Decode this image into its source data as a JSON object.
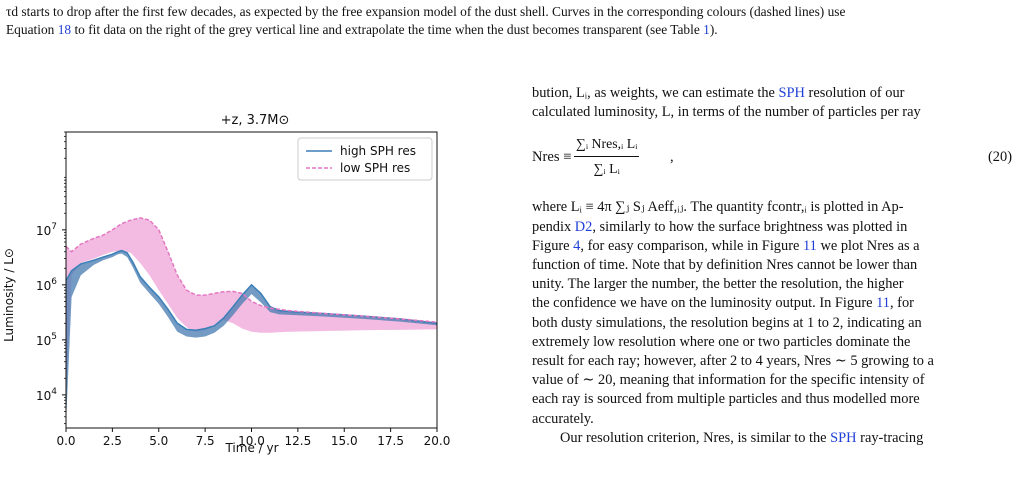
{
  "caption": {
    "line1": "τd starts to drop after the first few decades, as expected by the free expansion model of the dust shell. Curves in the corresponding colours (dashed lines) use",
    "line2_pre": "Equation ",
    "line2_eqref": "18",
    "line2_mid": " to fit data on the right of the grey vertical line and extrapolate the time when the dust becomes transparent (see Table ",
    "line2_tabref": "1",
    "line2_post": ")."
  },
  "body": {
    "p1_l1_pre": "bution, Lᵢ, as weights, we can estimate the ",
    "p1_l1_link": "SPH",
    "p1_l1_post": " resolution of our",
    "p1_l2": "calculated luminosity, L, in terms of the number of particles per ray",
    "eq_lhs": "Nres ≡",
    "eq_num": "∑ᵢ Nres,ᵢ Lᵢ",
    "eq_den": "∑ᵢ Lᵢ",
    "eq_tail": ",",
    "eq_number": "(20)",
    "p2_a": "where Lᵢ ≡ 4π ∑ⱼ Sⱼ Aeff,ᵢⱼ. The quantity fcontr,ᵢ is plotted in Ap-",
    "p2_b_pre": "pendix ",
    "p2_b_link": "D2",
    "p2_b_post": ", similarly to how the surface brightness was plotted in",
    "p2_c_pre": "Figure ",
    "p2_c_link1": "4",
    "p2_c_mid": ", for easy comparison, while in Figure ",
    "p2_c_link2": "11",
    "p2_c_post": " we plot Nres as a",
    "p2_d": "function of time. Note that by definition Nres cannot be lower than",
    "p2_e": "unity. The larger the number, the better the resolution, the higher",
    "p2_f_pre": "the confidence we have on the luminosity output. In Figure ",
    "p2_f_link": "11",
    "p2_f_post": ", for",
    "p2_g": "both dusty simulations, the resolution begins at 1 to 2, indicating an",
    "p2_h": "extremely low resolution where one or two particles dominate the",
    "p2_i": "result for each ray; however, after 2 to 4 years, Nres ∼ 5 growing to a",
    "p2_j": "value of ∼ 20, meaning that information for the specific intensity of",
    "p2_k": "each ray is sourced from multiple particles and thus modelled more",
    "p2_l": "accurately.",
    "p3_pre": "Our resolution criterion, Nres, is similar to the ",
    "p3_link": "SPH",
    "p3_post": " ray-tracing"
  },
  "chart_data": {
    "type": "line",
    "title": "+z, 3.7M⊙",
    "xlabel": "Time / yr",
    "ylabel": "Luminosity / L⊙",
    "yscale": "log",
    "xlim": [
      0,
      20
    ],
    "ylim": [
      2500,
      600000000
    ],
    "xticks": [
      "0.0",
      "2.5",
      "5.0",
      "7.5",
      "10.0",
      "12.5",
      "15.0",
      "17.5",
      "20.0"
    ],
    "yticks": [
      {
        "label": "10",
        "exp": "4",
        "value": 10000
      },
      {
        "label": "10",
        "exp": "5",
        "value": 100000
      },
      {
        "label": "10",
        "exp": "6",
        "value": 1000000
      },
      {
        "label": "10",
        "exp": "7",
        "value": 10000000
      }
    ],
    "legend_position": "top-right",
    "series": [
      {
        "name": "high SPH res",
        "color": "#3b7fb8",
        "style": "solid",
        "band_color": "#4d7fb3",
        "x": [
          0.0,
          0.3,
          0.8,
          1.5,
          2.0,
          2.5,
          2.8,
          3.0,
          3.3,
          3.6,
          4.0,
          4.5,
          5.0,
          5.5,
          6.0,
          6.5,
          7.0,
          7.5,
          8.0,
          8.5,
          9.0,
          9.5,
          10.0,
          10.5,
          11.0,
          11.5,
          12.5,
          14.0,
          16.0,
          18.0,
          20.0
        ],
        "y": [
          1200000,
          1800000,
          2400000,
          2800000,
          3200000,
          3600000,
          4000000,
          4200000,
          3800000,
          2600000,
          1400000,
          900000,
          600000,
          360000,
          200000,
          155000,
          150000,
          160000,
          180000,
          250000,
          400000,
          650000,
          1000000,
          700000,
          400000,
          340000,
          320000,
          300000,
          270000,
          240000,
          200000
        ],
        "lower": [
          3000,
          600000,
          1500000,
          2300000,
          2800000,
          3200000,
          3600000,
          3700000,
          3200000,
          2100000,
          1100000,
          700000,
          450000,
          260000,
          140000,
          115000,
          110000,
          115000,
          135000,
          180000,
          280000,
          450000,
          680000,
          480000,
          320000,
          290000,
          280000,
          265000,
          240000,
          215000,
          185000
        ]
      },
      {
        "name": "low SPH res",
        "color": "#e377c2",
        "style": "dashed",
        "band_color": "#f0a8d8",
        "x": [
          0.0,
          0.3,
          0.8,
          1.5,
          2.0,
          2.5,
          3.0,
          3.5,
          4.0,
          4.5,
          5.0,
          5.5,
          6.0,
          6.5,
          7.0,
          7.5,
          8.0,
          8.5,
          9.0,
          9.5,
          10.0,
          10.5,
          11.0,
          12.0,
          14.0,
          16.0,
          18.0,
          20.0
        ],
        "y": [
          5000000,
          4000000,
          5500000,
          7000000,
          8000000,
          10000000,
          13000000,
          15000000,
          16500000,
          15000000,
          10000000,
          4000000,
          1500000,
          800000,
          650000,
          650000,
          700000,
          750000,
          760000,
          700000,
          500000,
          420000,
          380000,
          340000,
          300000,
          270000,
          240000,
          210000
        ],
        "lower": [
          10000,
          1500000,
          2500000,
          3000000,
          3500000,
          4000000,
          4200000,
          3800000,
          2500000,
          1500000,
          800000,
          450000,
          250000,
          170000,
          140000,
          150000,
          180000,
          230000,
          200000,
          160000,
          140000,
          135000,
          135000,
          140000,
          145000,
          150000,
          152000,
          155000
        ]
      }
    ]
  },
  "colors": {
    "link": "#1f3fd6"
  }
}
